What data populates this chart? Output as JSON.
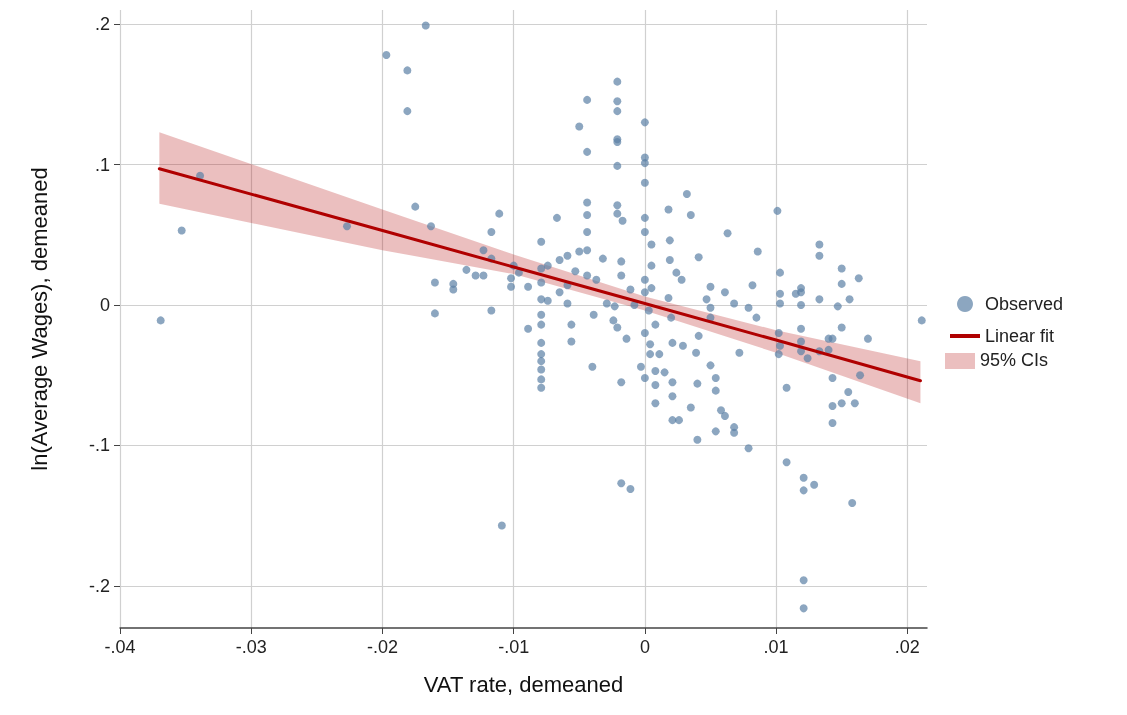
{
  "chart_data": {
    "type": "scatter",
    "xlabel": "VAT rate, demeaned",
    "ylabel": "ln(Average Wages), demeaned",
    "xlim": [
      -0.04,
      0.0215
    ],
    "ylim": [
      -0.23,
      0.21
    ],
    "xticks": [
      {
        "value": -0.04,
        "label": "-.04"
      },
      {
        "value": -0.03,
        "label": "-.03"
      },
      {
        "value": -0.02,
        "label": "-.02"
      },
      {
        "value": -0.01,
        "label": "-.01"
      },
      0,
      {
        "value": 0.01,
        "label": ".01"
      },
      {
        "value": 0.02,
        "label": ".02"
      }
    ],
    "yticks": [
      {
        "value": -0.2,
        "label": "-.2"
      },
      {
        "value": -0.1,
        "label": "-.1"
      },
      0,
      {
        "value": 0.1,
        "label": ".1"
      },
      {
        "value": 0.2,
        "label": ".2"
      }
    ],
    "grid": true,
    "legend": "right",
    "marker": "circle",
    "series": [
      {
        "name": "Observed",
        "type": "scatter",
        "color": "#5b80a5",
        "x": [
          -0.0369,
          -0.0353,
          -0.0339,
          -0.0227,
          -0.0197,
          -0.0181,
          -0.0181,
          -0.0167,
          -0.0175,
          -0.0163,
          -0.016,
          -0.016,
          -0.0146,
          -0.0146,
          -0.0136,
          -0.0129,
          -0.0123,
          -0.0123,
          -0.0117,
          -0.0117,
          -0.0111,
          -0.0117,
          -0.0109,
          -0.0102,
          -0.0102,
          -0.01,
          -0.0096,
          -0.0089,
          -0.0089,
          -0.0079,
          -0.0079,
          -0.0079,
          -0.0079,
          -0.0079,
          -0.0079,
          -0.0079,
          -0.0079,
          -0.0079,
          -0.0079,
          -0.0079,
          -0.0079,
          -0.0074,
          -0.0074,
          -0.0067,
          -0.0065,
          -0.0065,
          -0.0059,
          -0.0059,
          -0.0059,
          -0.0056,
          -0.0056,
          -0.005,
          -0.005,
          -0.0053,
          -0.0044,
          -0.0044,
          -0.0044,
          -0.0044,
          -0.0044,
          -0.0044,
          -0.0044,
          -0.0039,
          -0.004,
          -0.0037,
          -0.0032,
          -0.0029,
          -0.0023,
          -0.0024,
          -0.0021,
          -0.0021,
          -0.0021,
          -0.0021,
          -0.0021,
          -0.0021,
          -0.0021,
          -0.0021,
          -0.0021,
          -0.0017,
          -0.0018,
          -0.0018,
          -0.0018,
          -0.0018,
          -0.0011,
          -0.0014,
          -0.0011,
          -0.0008,
          0,
          0,
          0,
          0,
          0,
          0,
          0,
          0,
          0,
          0,
          -0.0003,
          0.0005,
          0.0005,
          0.0005,
          0.0003,
          0.0004,
          0.0004,
          0.0008,
          0.0008,
          0.0008,
          0.0008,
          0.0011,
          0.0015,
          0.0018,
          0.0019,
          0.0019,
          0.0018,
          0.002,
          0.0021,
          0.0021,
          0.0021,
          0.0021,
          0.0026,
          0.0024,
          0.0028,
          0.0032,
          0.0035,
          0.0041,
          0.0029,
          0.0039,
          0.004,
          0.0035,
          0.004,
          0.0047,
          0.005,
          0.005,
          0.005,
          0.005,
          0.0054,
          0.0054,
          0.0054,
          0.0058,
          0.0041,
          0.0063,
          0.0061,
          0.0086,
          0.0101,
          0.0082,
          0.0068,
          0.0079,
          0.0085,
          0.0072,
          0.0061,
          0.0068,
          0.0068,
          0.0079,
          0.0103,
          0.0103,
          0.0103,
          0.0102,
          0.0103,
          0.0102,
          0.0108,
          0.0108,
          0.0115,
          0.0119,
          0.0119,
          0.0119,
          0.0119,
          0.0119,
          0.0119,
          0.0124,
          0.0121,
          0.0121,
          0.0129,
          0.0121,
          0.0121,
          0.0133,
          0.0133,
          0.0133,
          0.0133,
          0.014,
          0.014,
          0.0143,
          0.0143,
          0.0143,
          0.0143,
          0.0147,
          0.015,
          0.015,
          0.015,
          0.015,
          0.0155,
          0.0156,
          0.016,
          0.0158,
          0.0163,
          0.0164,
          0.017,
          0.0211
        ],
        "values": [
          -0.011,
          0.053,
          0.092,
          0.056,
          0.178,
          0.167,
          0.138,
          0.199,
          0.07,
          0.056,
          0.016,
          -0.006,
          0.015,
          0.011,
          0.025,
          0.021,
          0.021,
          0.039,
          0.033,
          0.052,
          0.065,
          -0.004,
          -0.157,
          0.019,
          0.013,
          0.028,
          0.023,
          0.013,
          -0.017,
          0.045,
          0.026,
          0.016,
          0.004,
          -0.007,
          -0.014,
          -0.027,
          -0.035,
          -0.04,
          -0.046,
          -0.053,
          -0.059,
          0.003,
          0.028,
          0.062,
          0.032,
          0.009,
          0.035,
          0.014,
          0.001,
          -0.014,
          -0.026,
          0.038,
          0.127,
          0.024,
          0.146,
          0.109,
          0.073,
          0.064,
          0.052,
          0.039,
          0.021,
          -0.007,
          -0.044,
          0.018,
          0.033,
          0.001,
          -0.001,
          -0.011,
          -0.016,
          0.159,
          0.145,
          0.138,
          0.118,
          0.116,
          0.099,
          0.071,
          0.065,
          0.06,
          0.031,
          0.021,
          -0.055,
          -0.127,
          -0.131,
          -0.024,
          0.011,
          0,
          0.13,
          0.105,
          0.101,
          0.087,
          0.062,
          0.052,
          0.018,
          0.009,
          -0.02,
          -0.052,
          -0.044,
          0.043,
          0.028,
          0.012,
          -0.004,
          -0.028,
          -0.035,
          -0.014,
          -0.047,
          -0.057,
          -0.07,
          -0.035,
          -0.048,
          0.068,
          0.046,
          0.032,
          0.005,
          -0.009,
          -0.027,
          -0.055,
          -0.065,
          -0.082,
          -0.082,
          0.023,
          0.018,
          0.079,
          0.064,
          0.034,
          -0.029,
          -0.034,
          -0.056,
          -0.073,
          -0.096,
          0.004,
          0.013,
          -0.002,
          -0.009,
          -0.043,
          -0.052,
          -0.061,
          -0.09,
          -0.075,
          -0.022,
          0.051,
          0.009,
          0.038,
          0.067,
          0.014,
          0.001,
          -0.002,
          -0.009,
          -0.034,
          -0.079,
          -0.087,
          -0.091,
          -0.102,
          0.023,
          0.008,
          0.001,
          -0.02,
          -0.029,
          -0.035,
          -0.059,
          -0.112,
          0.008,
          0.012,
          0.009,
          0,
          -0.017,
          -0.026,
          -0.033,
          -0.038,
          -0.123,
          -0.132,
          -0.128,
          -0.196,
          -0.216,
          0.043,
          0.035,
          0.004,
          -0.033,
          -0.032,
          -0.024,
          -0.024,
          -0.052,
          -0.072,
          -0.084,
          -0.001,
          0.026,
          0.015,
          -0.016,
          -0.07,
          -0.062,
          0.004,
          -0.07,
          -0.141,
          0.019,
          -0.05,
          -0.024,
          -0.011
        ]
      },
      {
        "name": "Linear fit",
        "type": "line",
        "color": "#b00000",
        "marker": "none",
        "x": [
          -0.037,
          -0.02,
          -0.01,
          0,
          0.01,
          0.021
        ],
        "values": [
          0.097,
          0.053,
          0.027,
          0.001,
          -0.025,
          -0.054
        ],
        "lower": [
          0.072,
          0.039,
          0.022,
          -0.004,
          -0.034,
          -0.07
        ],
        "upper": [
          0.123,
          0.068,
          0.036,
          0.006,
          -0.018,
          -0.04
        ]
      }
    ],
    "annotations": [
      "95% CIs"
    ]
  }
}
